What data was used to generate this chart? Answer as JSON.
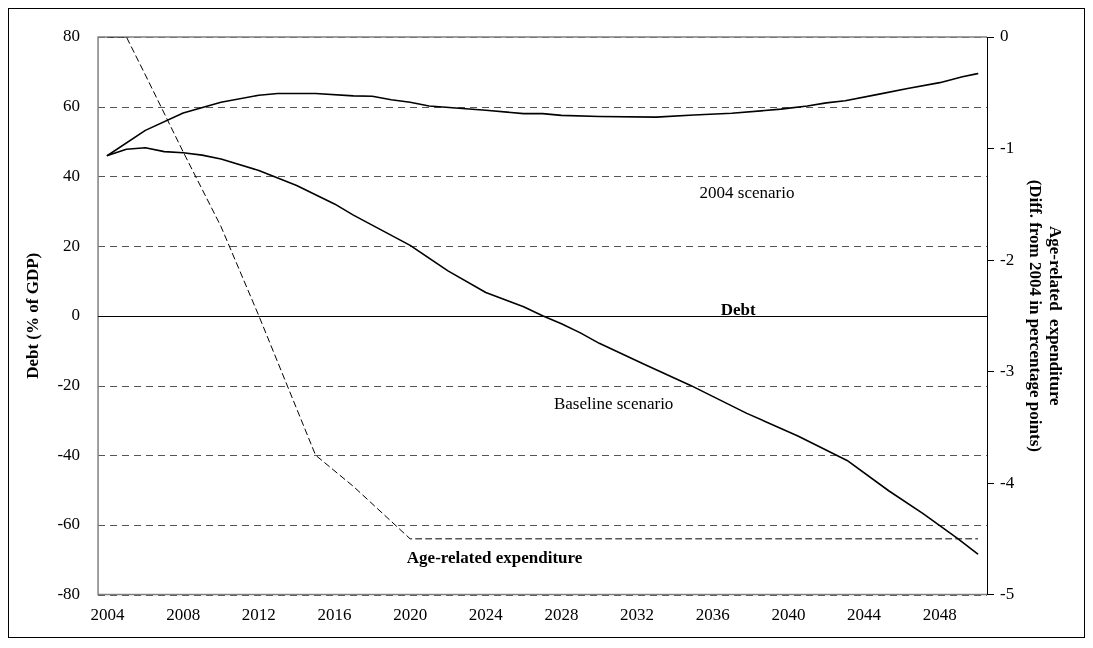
{
  "chart_data": {
    "type": "line",
    "ylabel": "Debt (% of GDP)",
    "y2label": "Age-related  expenditure\n(Diff. from 2004 in percentage points)",
    "xlim": [
      2003.5,
      2050.5
    ],
    "xticks": [
      2004,
      2008,
      2012,
      2016,
      2020,
      2024,
      2028,
      2032,
      2036,
      2040,
      2044,
      2048
    ],
    "ylim": [
      -80,
      80
    ],
    "yticks": [
      -80,
      -60,
      -40,
      -20,
      0,
      20,
      40,
      60,
      80
    ],
    "y2lim": [
      -5,
      0
    ],
    "y2ticks": [
      -5,
      -4,
      -3,
      -2,
      -1,
      0
    ],
    "grid": "y",
    "marker": "none",
    "ref_lines": [
      {
        "axis": "y",
        "value": 0,
        "color": "#000000",
        "line_style": "solid"
      }
    ],
    "series": [
      {
        "color": "#000000",
        "line_style": "solid",
        "x": [
          2004,
          2006,
          2008,
          2010,
          2012,
          2013,
          2015,
          2017,
          2018,
          2019,
          2020,
          2021,
          2024,
          2026,
          2027,
          2028,
          2030,
          2033,
          2035,
          2037,
          2039.6,
          2041,
          2042,
          2043,
          2044.8,
          2046.3,
          2048,
          2049.2,
          2050
        ],
        "values": [
          46,
          53.2,
          58.2,
          61.3,
          63.3,
          63.8,
          63.8,
          63.1,
          63,
          62,
          61.3,
          60.2,
          59,
          58,
          58,
          57.5,
          57.2,
          57,
          57.6,
          58.1,
          59.3,
          60.2,
          61.1,
          61.7,
          63.6,
          65.2,
          66.9,
          68.6,
          69.5
        ]
      },
      {
        "color": "#000000",
        "line_style": "solid",
        "x": [
          2004,
          2005,
          2006,
          2007,
          2008,
          2009,
          2010,
          2012,
          2014,
          2016,
          2017,
          2020,
          2022,
          2024,
          2026,
          2027,
          2028,
          2029,
          2030,
          2032.4,
          2034.8,
          2036.1,
          2037.8,
          2040.5,
          2043.1,
          2045.3,
          2047.1,
          2048.9,
          2050
        ],
        "values": [
          46,
          47.8,
          48.2,
          47.1,
          46.8,
          46.1,
          45,
          41.7,
          37.4,
          32.1,
          28.9,
          20.2,
          12.9,
          6.7,
          2.6,
          0,
          -2.3,
          -4.9,
          -7.9,
          -14,
          -19.9,
          -23.4,
          -28,
          -34.5,
          -41.5,
          -50.2,
          -56.7,
          -63.7,
          -68.3
        ]
      },
      {
        "color": "#000000",
        "line_style": "dashed",
        "axis": "y2",
        "x": [
          2004,
          2005,
          2006,
          2008,
          2010,
          2012,
          2015,
          2017,
          2020,
          2050
        ],
        "values": [
          0,
          0,
          -0.34,
          -1.03,
          -1.7,
          -2.5,
          -3.75,
          -4.03,
          -4.5,
          -4.5
        ]
      }
    ],
    "annotations": [
      "2004 scenario",
      "Baseline scenario",
      "Debt",
      "Age-related expenditure"
    ]
  }
}
